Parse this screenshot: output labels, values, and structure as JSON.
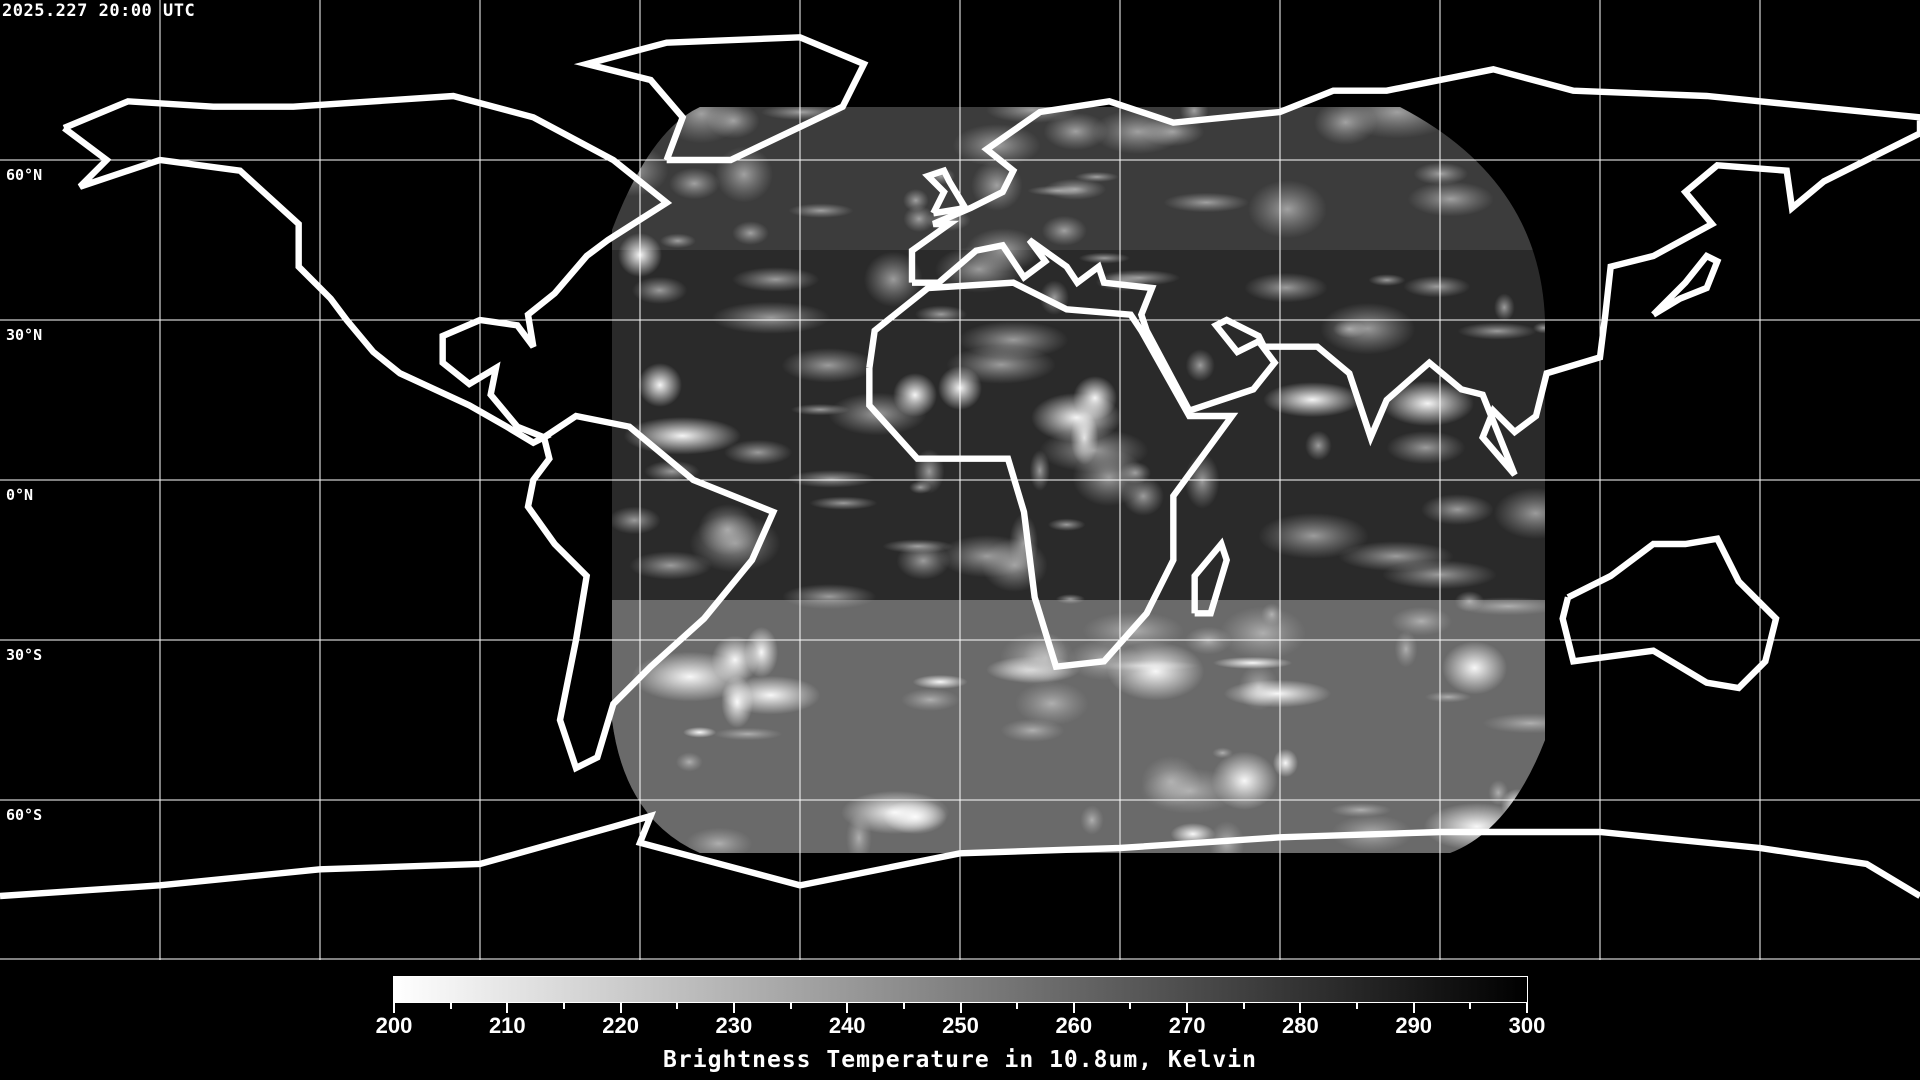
{
  "timestamp": "2025.227 20:00 UTC",
  "lat_labels": [
    {
      "lat": 60,
      "label": "60°N"
    },
    {
      "lat": 30,
      "label": "30°N"
    },
    {
      "lat": 0,
      "label": "0°N"
    },
    {
      "lat": -30,
      "label": "30°S"
    },
    {
      "lat": -60,
      "label": "60°S"
    }
  ],
  "grid_spacing_deg": 30,
  "projection": "equirectangular",
  "colorbar": {
    "title": "Brightness Temperature in 10.8um, Kelvin",
    "min": 200,
    "max": 300,
    "tick_labels": [
      "200",
      "210",
      "220",
      "230",
      "240",
      "250",
      "260",
      "270",
      "280",
      "290",
      "300"
    ],
    "colormap": [
      "#ffffff",
      "#000000"
    ]
  }
}
